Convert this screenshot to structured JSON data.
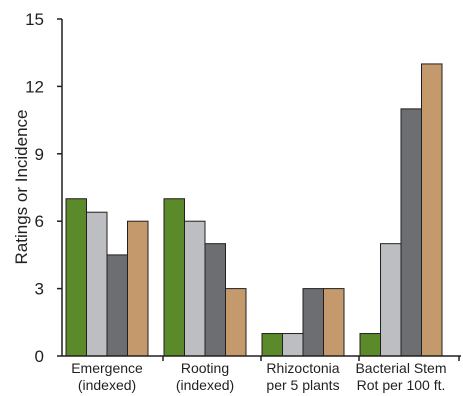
{
  "chart_data": {
    "type": "bar",
    "title": "",
    "ylabel": "Ratings or Incidence",
    "xlabel": "",
    "ylim": [
      0,
      15
    ],
    "yticks": [
      0,
      3,
      6,
      9,
      12,
      15
    ],
    "grid": false,
    "legend": "none",
    "categories": [
      [
        "Emergence",
        "(indexed)"
      ],
      [
        "Rooting",
        "(indexed)"
      ],
      [
        "Rhizoctonia",
        "per 5 plants"
      ],
      [
        "Bacterial Stem",
        "Rot per 100 ft."
      ]
    ],
    "series": [
      {
        "color": "#5a8a2a",
        "values": [
          7,
          7,
          1,
          1
        ]
      },
      {
        "color": "#bdbec2",
        "values": [
          6.4,
          6,
          1,
          5
        ]
      },
      {
        "color": "#6d6e71",
        "values": [
          4.5,
          5,
          3,
          11
        ]
      },
      {
        "color": "#c49a6c",
        "values": [
          6,
          3,
          3,
          13
        ]
      }
    ]
  }
}
